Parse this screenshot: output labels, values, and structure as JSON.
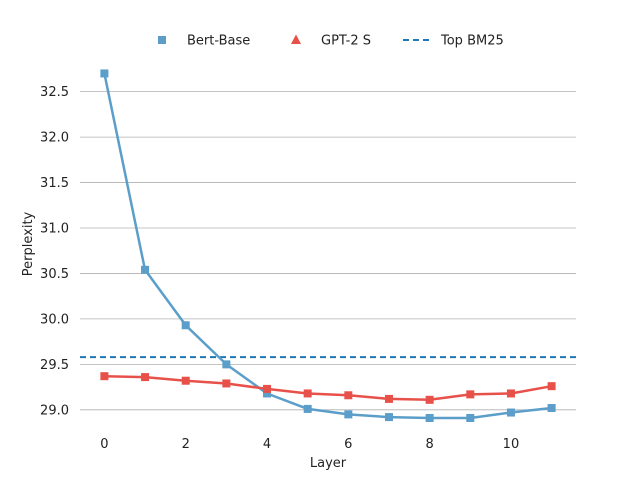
{
  "chart_data": {
    "type": "line",
    "xlabel": "Layer",
    "ylabel": "Perplexity",
    "xlim": [
      -0.6,
      11.6
    ],
    "ylim": [
      28.8,
      32.87
    ],
    "xticks": [
      0,
      2,
      4,
      6,
      8,
      10
    ],
    "xtick_labels": [
      "0",
      "2",
      "4",
      "6",
      "8",
      "10"
    ],
    "yticks": [
      29.0,
      29.5,
      30.0,
      30.5,
      31.0,
      31.5,
      32.0,
      32.5
    ],
    "ytick_labels": [
      "29.0",
      "29.5",
      "30.0",
      "30.5",
      "31.0",
      "31.5",
      "32.0",
      "32.5"
    ],
    "grid": "horizontal",
    "legend_position": "top",
    "x": [
      0,
      1,
      2,
      3,
      4,
      5,
      6,
      7,
      8,
      9,
      10,
      11
    ],
    "series": [
      {
        "name": "Bert-Base",
        "color": "#5a9ec9",
        "marker": "square",
        "values": [
          32.7,
          30.54,
          29.93,
          29.5,
          29.18,
          29.01,
          28.95,
          28.92,
          28.91,
          28.91,
          28.97,
          29.02
        ]
      },
      {
        "name": "GPT-2 S",
        "color": "#e8514a",
        "marker": "square",
        "legend_marker": "triangle",
        "values": [
          29.37,
          29.36,
          29.32,
          29.29,
          29.23,
          29.18,
          29.16,
          29.12,
          29.11,
          29.17,
          29.18,
          29.26
        ]
      }
    ],
    "reference_lines": [
      {
        "name": "Top BM25",
        "y": 29.58,
        "color": "#1f77b4",
        "style": "dashed"
      }
    ]
  }
}
